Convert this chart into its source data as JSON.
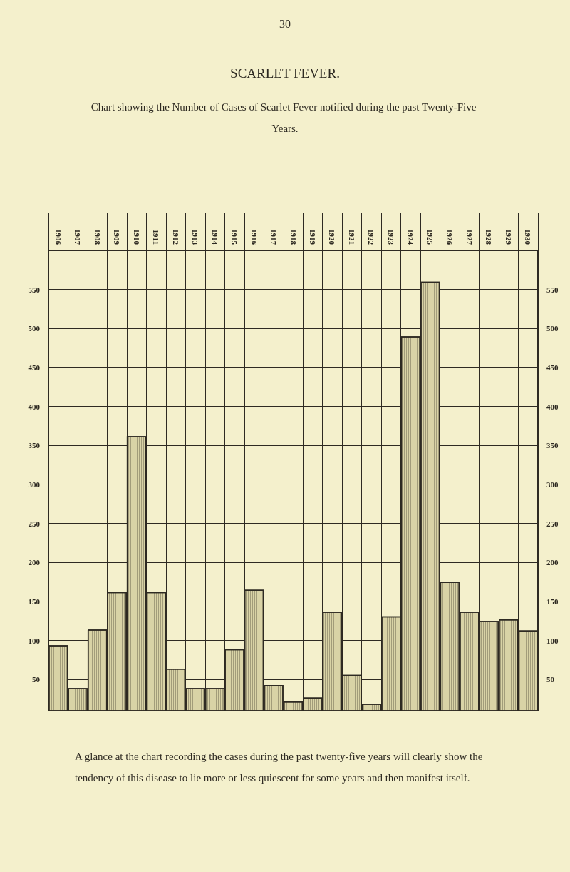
{
  "chart_data": {
    "type": "bar",
    "title": "SCARLET FEVER.",
    "subtitle": "Chart showing the Number of Cases of Scarlet Fever notified during the past Twenty-Five Years.",
    "categories": [
      "1906",
      "1907",
      "1908",
      "1909",
      "1910",
      "1911",
      "1912",
      "1913",
      "1914",
      "1915",
      "1916",
      "1917",
      "1918",
      "1919",
      "1920",
      "1921",
      "1922",
      "1923",
      "1924",
      "1925",
      "1926",
      "1927",
      "1928",
      "1929",
      "1930"
    ],
    "values": [
      94,
      39,
      114,
      162,
      362,
      162,
      64,
      39,
      39,
      89,
      165,
      43,
      22,
      27,
      137,
      56,
      19,
      131,
      490,
      560,
      175,
      137,
      125,
      127,
      113
    ],
    "color": "#d9d3a6",
    "ylim": [
      10,
      600
    ],
    "yticks": [
      50,
      100,
      150,
      200,
      250,
      300,
      350,
      400,
      450,
      500,
      550
    ],
    "y2lim": [
      10,
      600
    ],
    "y2ticks": [
      50,
      100,
      150,
      200,
      250,
      300,
      350,
      400,
      450,
      500,
      550
    ],
    "grid": true,
    "annotations": [
      "30",
      "A glance at the chart recording the cases during the past twenty-five years will clearly show the tendency of this disease to lie more or less quiescent for some years and then manifest itself."
    ]
  }
}
